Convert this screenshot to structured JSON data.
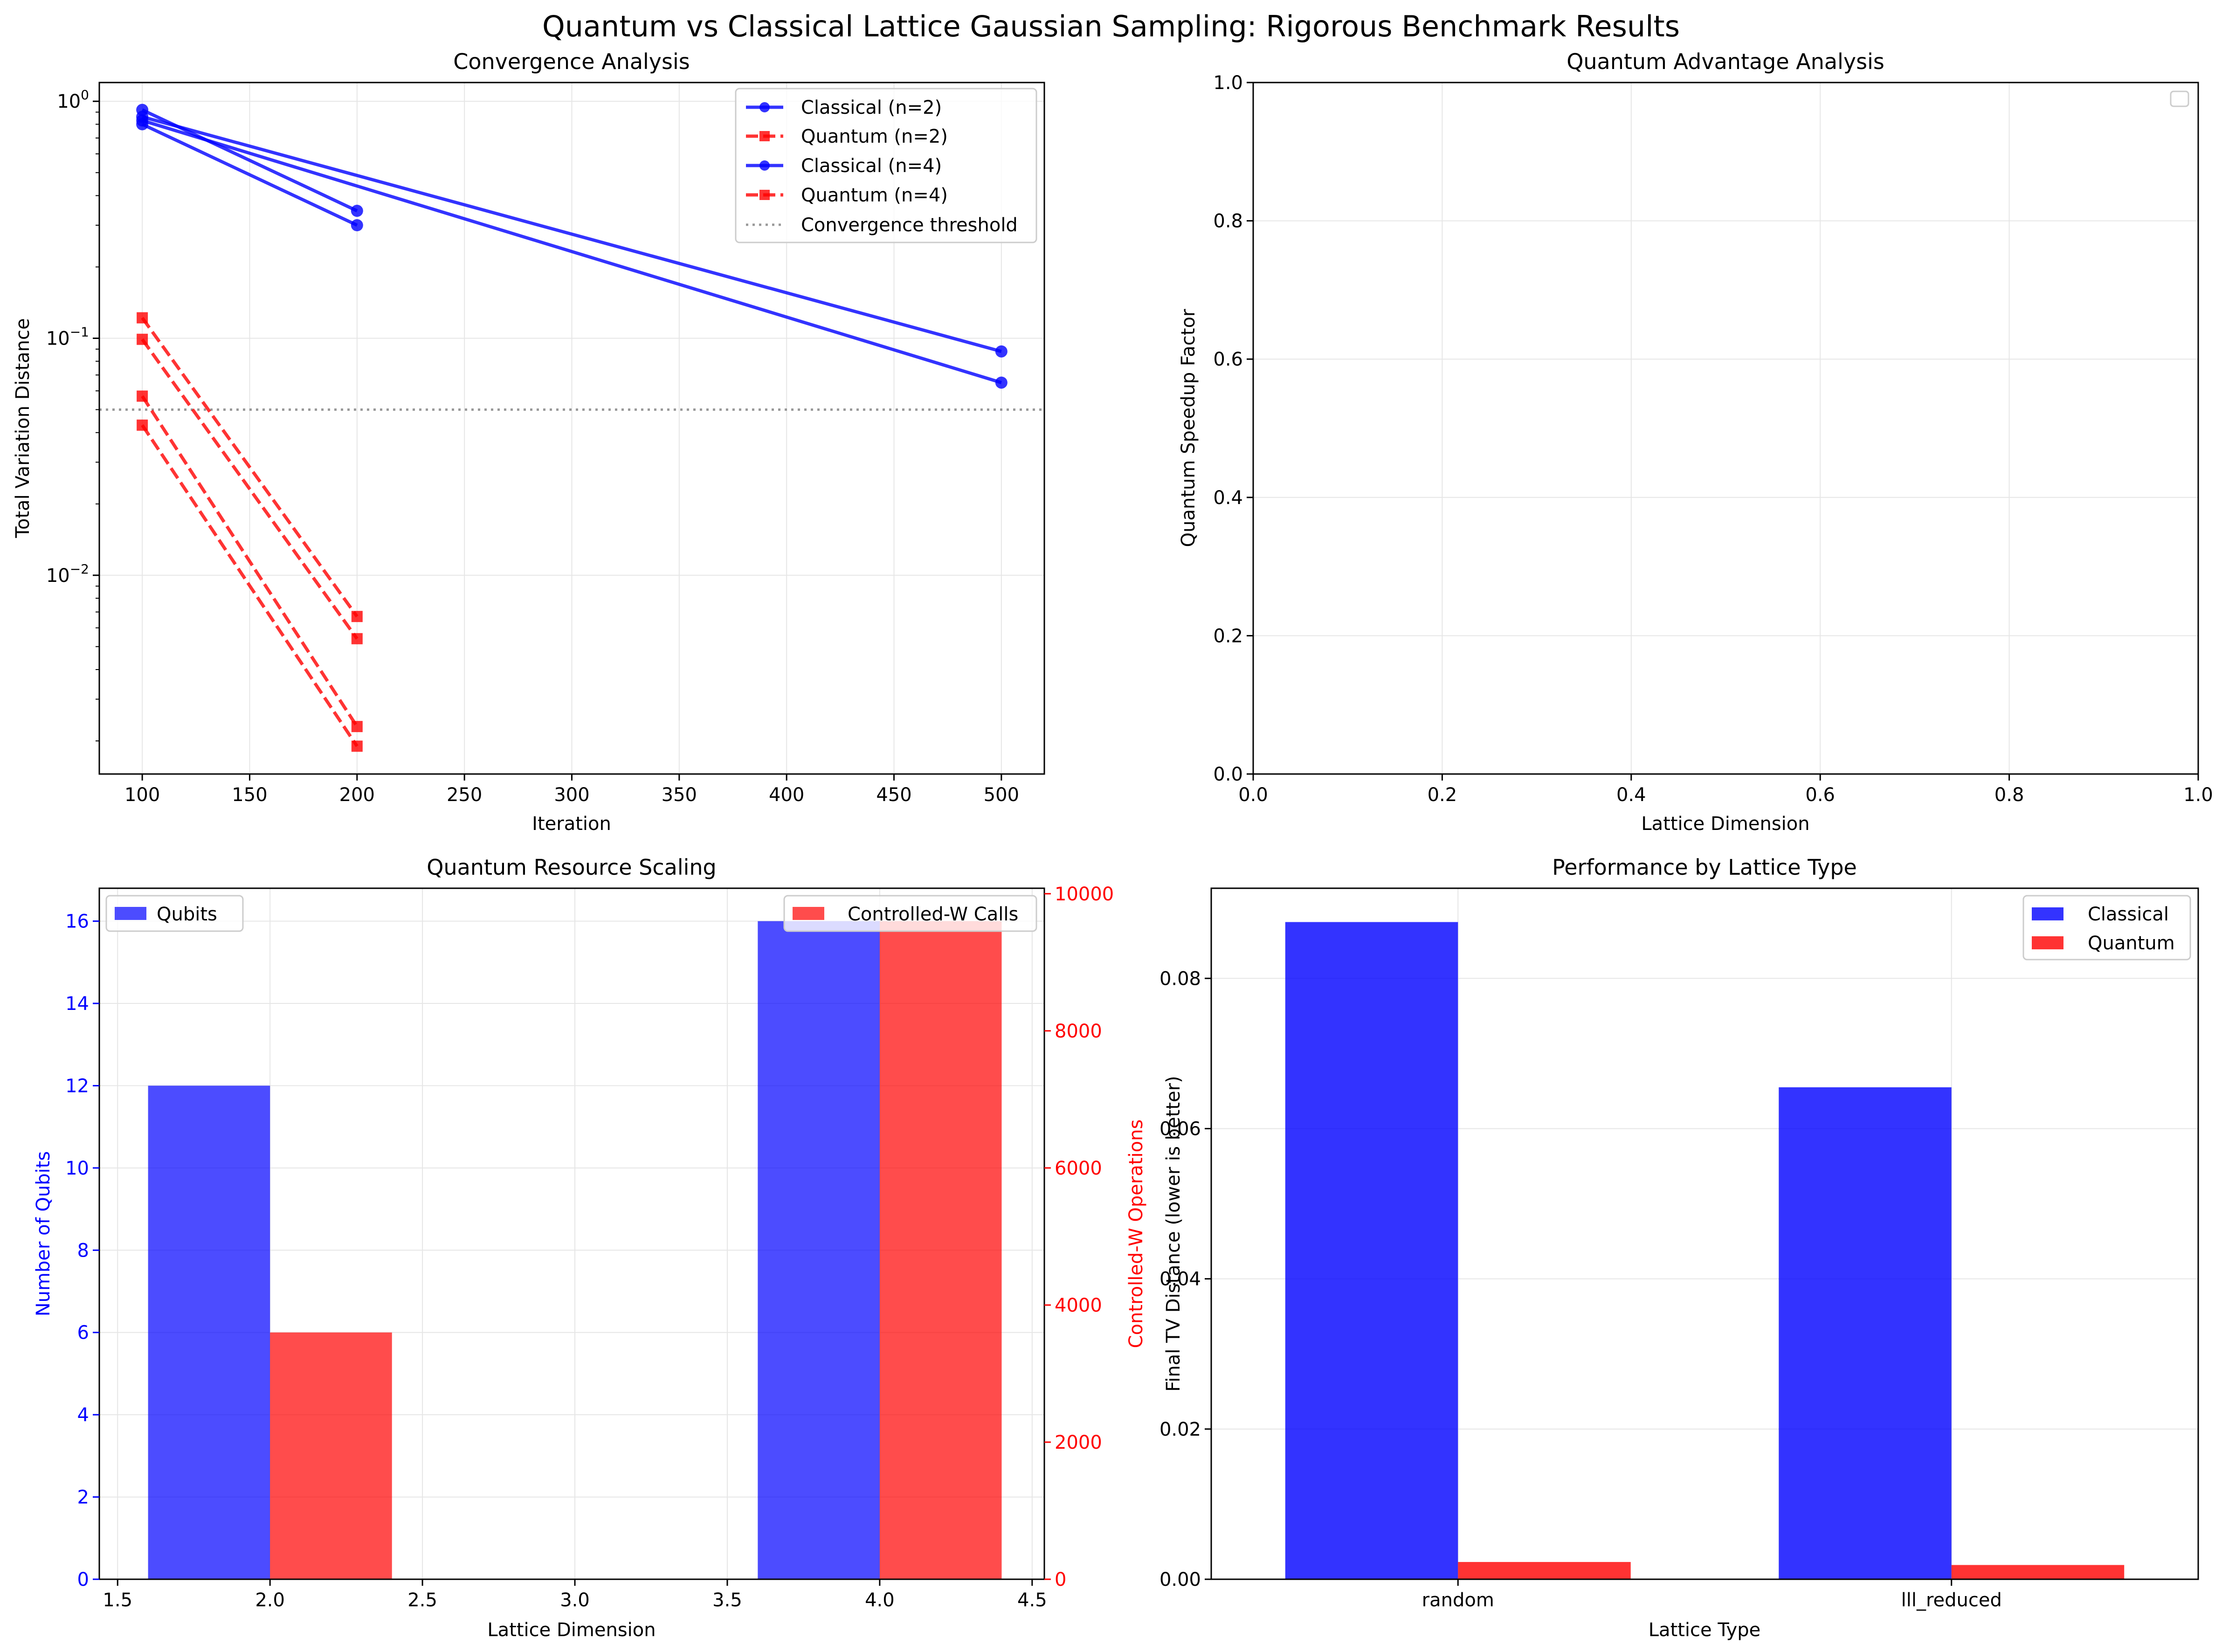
{
  "figure_title": "Quantum vs Classical Lattice Gaussian Sampling: Rigorous Benchmark Results",
  "colors": {
    "classical": "#0000ff",
    "quantum": "#ff0000",
    "threshold": "#808080",
    "grid": "#e6e6e6"
  },
  "chart_data": [
    {
      "id": "convergence",
      "type": "line",
      "title": "Convergence Analysis",
      "xlabel": "Iteration",
      "ylabel": "Total Variation Distance",
      "yscale": "log",
      "xlim": [
        80,
        520
      ],
      "ylim": [
        0.00145,
        1.2
      ],
      "xticks": [
        100,
        150,
        200,
        250,
        300,
        350,
        400,
        450,
        500
      ],
      "ytick_exponents": [
        0,
        -1,
        -2
      ],
      "grid": true,
      "legend_placement": "top-right",
      "legend": [
        "Classical (n=2)",
        "Quantum (n=2)",
        "Classical (n=4)",
        "Quantum (n=4)",
        "Convergence threshold"
      ],
      "series": [
        {
          "kind": "classical",
          "x": [
            100,
            200
          ],
          "y": [
            0.92,
            0.345
          ]
        },
        {
          "kind": "classical",
          "x": [
            100,
            200
          ],
          "y": [
            0.8,
            0.3
          ]
        },
        {
          "kind": "classical",
          "x": [
            100,
            500
          ],
          "y": [
            0.86,
            0.088
          ]
        },
        {
          "kind": "classical",
          "x": [
            100,
            500
          ],
          "y": [
            0.83,
            0.065
          ]
        },
        {
          "kind": "quantum",
          "x": [
            100,
            200
          ],
          "y": [
            0.122,
            0.0067
          ]
        },
        {
          "kind": "quantum",
          "x": [
            100,
            200
          ],
          "y": [
            0.099,
            0.0054
          ]
        },
        {
          "kind": "quantum",
          "x": [
            100,
            200
          ],
          "y": [
            0.057,
            0.0023
          ]
        },
        {
          "kind": "quantum",
          "x": [
            100,
            200
          ],
          "y": [
            0.043,
            0.0019
          ]
        }
      ],
      "threshold": 0.05
    },
    {
      "id": "advantage",
      "type": "scatter",
      "title": "Quantum Advantage Analysis",
      "xlabel": "Lattice Dimension",
      "ylabel": "Quantum Speedup Factor",
      "xlim": [
        0,
        1
      ],
      "ylim": [
        0,
        1
      ],
      "xticks": [
        "0.0",
        "0.2",
        "0.4",
        "0.6",
        "0.8",
        "1.0"
      ],
      "yticks": [
        "0.0",
        "0.2",
        "0.4",
        "0.6",
        "0.8",
        "1.0"
      ],
      "grid": true,
      "legend_placement": "top-right",
      "series": []
    },
    {
      "id": "resources",
      "type": "bar",
      "title": "Quantum Resource Scaling",
      "xlabel": "Lattice Dimension",
      "ylabel": "Number of Qubits",
      "ylabel_right": "Controlled-W Operations",
      "xlim": [
        1.44,
        4.54
      ],
      "ylim": [
        0,
        16.8
      ],
      "ylim_right": [
        0,
        10080
      ],
      "xticks": [
        "1.5",
        "2.0",
        "2.5",
        "3.0",
        "3.5",
        "4.0",
        "4.5"
      ],
      "yticks": [
        "0",
        "2",
        "4",
        "6",
        "8",
        "10",
        "12",
        "14",
        "16"
      ],
      "yticks_right": [
        "0",
        "2000",
        "4000",
        "6000",
        "8000",
        "10000"
      ],
      "grid": true,
      "series": [
        {
          "name": "Qubits",
          "axis": "left",
          "x": [
            2,
            4
          ],
          "values": [
            12,
            16
          ],
          "offset": -0.2,
          "width": 0.4,
          "legend_placement": "top-left"
        },
        {
          "name": "Controlled-W Calls",
          "axis": "right",
          "x": [
            2,
            4
          ],
          "values": [
            3600,
            9600
          ],
          "offset": 0.2,
          "width": 0.4,
          "legend_placement": "top-right"
        }
      ]
    },
    {
      "id": "lattice_type",
      "type": "bar",
      "title": "Performance by Lattice Type",
      "xlabel": "Lattice Type",
      "ylabel": "Final TV Distance (lower is better)",
      "categories": [
        "random",
        "lll_reduced"
      ],
      "ylim": [
        0,
        0.092
      ],
      "yticks": [
        "0.00",
        "0.02",
        "0.04",
        "0.06",
        "0.08"
      ],
      "grid": true,
      "legend_placement": "top-right",
      "series": [
        {
          "name": "Classical",
          "values": [
            0.0875,
            0.0655
          ]
        },
        {
          "name": "Quantum",
          "values": [
            0.0023,
            0.0019
          ]
        }
      ]
    }
  ]
}
